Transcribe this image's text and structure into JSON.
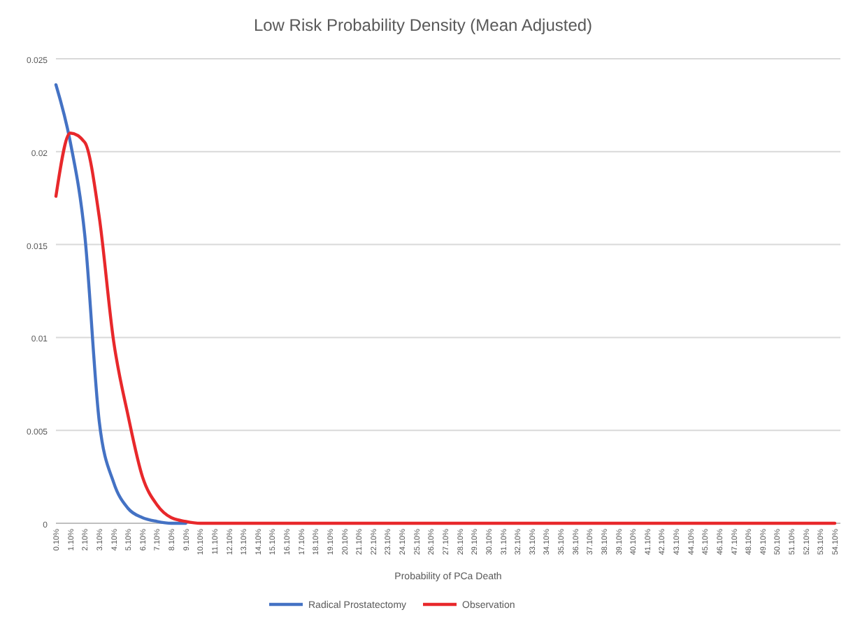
{
  "chart_data": {
    "type": "line",
    "title": "Low Risk Probability Density (Mean Adjusted)",
    "xlabel": "Probability of PCa Death",
    "categories": [
      "0.10%",
      "1.10%",
      "2.10%",
      "3.10%",
      "4.10%",
      "5.10%",
      "6.10%",
      "7.10%",
      "8.10%",
      "9.10%",
      "10.10%",
      "11.10%",
      "12.10%",
      "13.10%",
      "14.10%",
      "15.10%",
      "16.10%",
      "17.10%",
      "18.10%",
      "19.10%",
      "20.10%",
      "21.10%",
      "22.10%",
      "23.10%",
      "24.10%",
      "25.10%",
      "26.10%",
      "27.10%",
      "28.10%",
      "29.10%",
      "30.10%",
      "31.10%",
      "32.10%",
      "33.10%",
      "34.10%",
      "35.10%",
      "36.10%",
      "37.10%",
      "38.10%",
      "39.10%",
      "40.10%",
      "41.10%",
      "42.10%",
      "43.10%",
      "44.10%",
      "45.10%",
      "46.10%",
      "47.10%",
      "48.10%",
      "49.10%",
      "50.10%",
      "51.10%",
      "52.10%",
      "53.10%",
      "54.10%"
    ],
    "series": [
      {
        "name": "Radical Prostatectomy",
        "color": "#4472c4",
        "values": [
          0.0236,
          0.0205,
          0.0155,
          0.0055,
          0.0022,
          0.0008,
          0.0003,
          0.0001,
          0,
          0,
          null,
          null,
          null,
          null,
          null,
          null,
          null,
          null,
          null,
          null,
          null,
          null,
          null,
          null,
          null,
          null,
          null,
          null,
          null,
          null,
          null,
          null,
          null,
          null,
          null,
          null,
          null,
          null,
          null,
          null,
          null,
          null,
          null,
          null,
          null,
          null,
          null,
          null,
          null,
          null,
          null,
          null,
          null,
          null,
          null
        ]
      },
      {
        "name": "Observation",
        "color": "#e8282b",
        "values": [
          0.0176,
          0.021,
          0.0205,
          0.0165,
          0.0098,
          0.0058,
          0.0025,
          0.001,
          0.0003,
          0.0001,
          0,
          0,
          0,
          0,
          0,
          0,
          0,
          0,
          0,
          0,
          0,
          0,
          0,
          0,
          0,
          0,
          0,
          0,
          0,
          0,
          0,
          0,
          0,
          0,
          0,
          0,
          0,
          0,
          0,
          0,
          0,
          0,
          0,
          0,
          0,
          0,
          0,
          0,
          0,
          0,
          0,
          0,
          0,
          0,
          0
        ]
      }
    ],
    "ylim": [
      0,
      0.025
    ],
    "yticks": [
      0,
      0.005,
      0.01,
      0.015,
      0.02,
      0.025
    ],
    "grid": "y",
    "legend": "bottom",
    "marker": "none",
    "line_style": "solid"
  }
}
